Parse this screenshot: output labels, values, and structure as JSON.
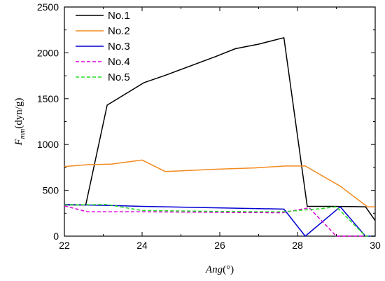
{
  "chart_data": {
    "type": "line",
    "title": "",
    "xlabel": {
      "prefix": "Ang",
      "suffix": "(°)"
    },
    "ylabel": {
      "main": "F",
      "subscript": "mm",
      "unit": "(dyn/g)"
    },
    "xlim": [
      22,
      30
    ],
    "ylim": [
      0,
      2500
    ],
    "xticks": [
      "22",
      "24",
      "26",
      "28",
      "30"
    ],
    "yticks": [
      "0",
      "500",
      "1000",
      "1500",
      "2000",
      "2500"
    ],
    "grid": false,
    "legend_position": "top-left",
    "series": [
      {
        "name": "No.1",
        "color": "#000000",
        "dash": "solid",
        "points": [
          [
            22,
            340
          ],
          [
            22.55,
            340
          ],
          [
            23.1,
            1430
          ],
          [
            24.05,
            1675
          ],
          [
            24.6,
            1755
          ],
          [
            25.9,
            1960
          ],
          [
            26.4,
            2045
          ],
          [
            27.0,
            2095
          ],
          [
            27.65,
            2165
          ],
          [
            28.25,
            325
          ],
          [
            28.9,
            325
          ],
          [
            29.75,
            320
          ],
          [
            30,
            170
          ]
        ]
      },
      {
        "name": "No.2",
        "color": "#f28a1e",
        "dash": "solid",
        "points": [
          [
            22,
            760
          ],
          [
            22.6,
            780
          ],
          [
            23.2,
            785
          ],
          [
            24.0,
            830
          ],
          [
            24.6,
            705
          ],
          [
            25.9,
            730
          ],
          [
            26.9,
            745
          ],
          [
            27.7,
            765
          ],
          [
            28.2,
            765
          ],
          [
            29.1,
            545
          ],
          [
            29.8,
            320
          ],
          [
            30,
            320
          ]
        ]
      },
      {
        "name": "No.3",
        "color": "#0000d4",
        "dash": "solid",
        "points": [
          [
            22,
            345
          ],
          [
            23.2,
            335
          ],
          [
            24.0,
            325
          ],
          [
            27.65,
            295
          ],
          [
            28.2,
            0
          ],
          [
            29.1,
            320
          ],
          [
            29.75,
            0
          ],
          [
            30,
            0
          ]
        ]
      },
      {
        "name": "No.4",
        "color": "#e000e0",
        "dash": "dashed",
        "points": [
          [
            22,
            330
          ],
          [
            22.6,
            265
          ],
          [
            24.1,
            265
          ],
          [
            27.6,
            255
          ],
          [
            28.3,
            310
          ],
          [
            29.0,
            0
          ],
          [
            30,
            0
          ]
        ]
      },
      {
        "name": "No.5",
        "color": "#22dd22",
        "dash": "dashed",
        "points": [
          [
            22,
            340
          ],
          [
            23.1,
            345
          ],
          [
            24.0,
            280
          ],
          [
            26.0,
            270
          ],
          [
            27.6,
            265
          ],
          [
            28.6,
            300
          ],
          [
            29.0,
            320
          ],
          [
            29.75,
            0
          ],
          [
            30,
            0
          ]
        ]
      }
    ]
  }
}
